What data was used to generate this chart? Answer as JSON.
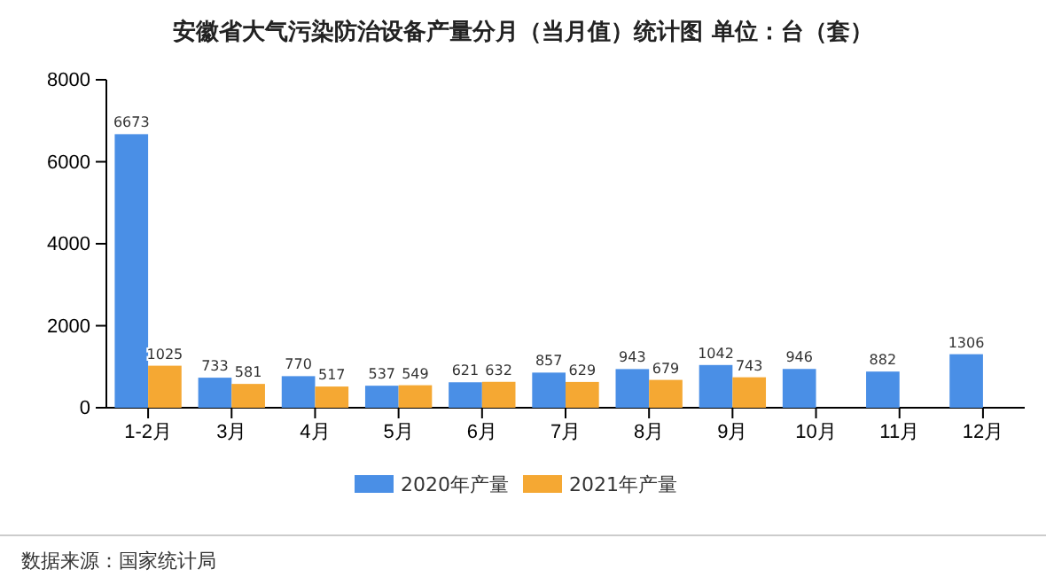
{
  "chart_data": {
    "type": "bar",
    "title": "安徽省大气污染防治设备产量分月（当月值）统计图 单位：台（套）",
    "categories": [
      "1-2月",
      "3月",
      "4月",
      "5月",
      "6月",
      "7月",
      "8月",
      "9月",
      "10月",
      "11月",
      "12月"
    ],
    "series": [
      {
        "name": "2020年产量",
        "color": "#4a8fe6",
        "values": [
          6673,
          733,
          770,
          537,
          621,
          857,
          943,
          1042,
          946,
          882,
          1306
        ]
      },
      {
        "name": "2021年产量",
        "color": "#f5a833",
        "values": [
          1025,
          581,
          517,
          549,
          632,
          629,
          679,
          743,
          null,
          null,
          null
        ]
      }
    ],
    "ylim": [
      0,
      8000
    ],
    "yticks": [
      0,
      2000,
      4000,
      6000,
      8000
    ],
    "grid": false,
    "legend": "bottom",
    "data_labels": true,
    "annotations": [
      "数据来源：国家统计局"
    ]
  }
}
